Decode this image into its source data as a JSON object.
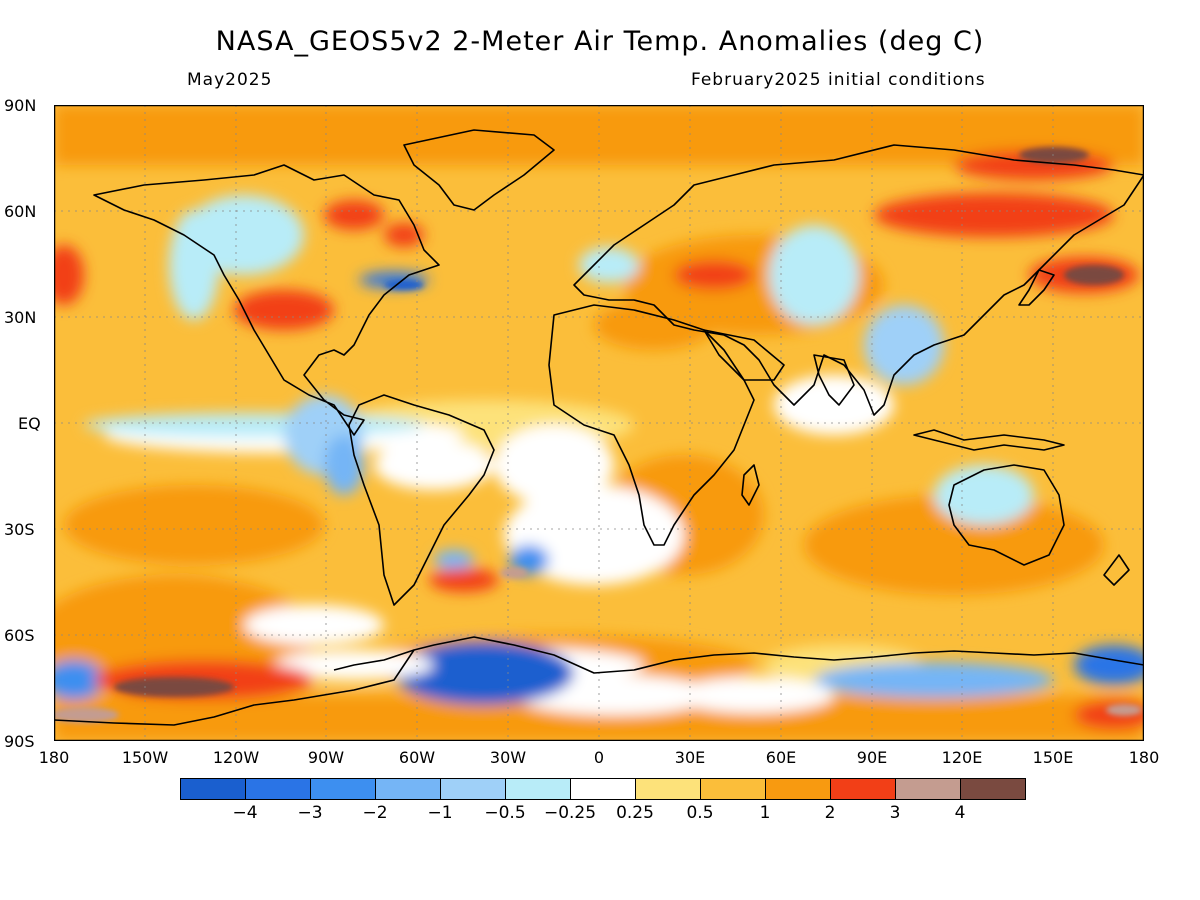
{
  "title": "NASA_GEOS5v2 2-Meter Air Temp. Anomalies (deg C)",
  "subtitle_left": "May2025",
  "subtitle_right": "February2025 initial conditions",
  "lat_labels": [
    "90N",
    "60N",
    "30N",
    "EQ",
    "30S",
    "60S",
    "90S"
  ],
  "lon_labels": [
    "180",
    "150W",
    "120W",
    "90W",
    "60W",
    "30W",
    "0",
    "30E",
    "60E",
    "90E",
    "120E",
    "150E",
    "180"
  ],
  "colorbar": {
    "colors": [
      "#1a5fcf",
      "#2a74e6",
      "#3d8ff0",
      "#75b5f6",
      "#9fd0f8",
      "#b8ecf8",
      "#ffffff",
      "#fde27a",
      "#fbbe3a",
      "#f89a10",
      "#f23f17",
      "#c49c90",
      "#7a4a40"
    ],
    "labels": [
      "-4",
      "-3",
      "-2",
      "-1",
      "-0.5",
      "-0.25",
      "0.25",
      "0.5",
      "1",
      "2",
      "3",
      "4"
    ]
  }
}
